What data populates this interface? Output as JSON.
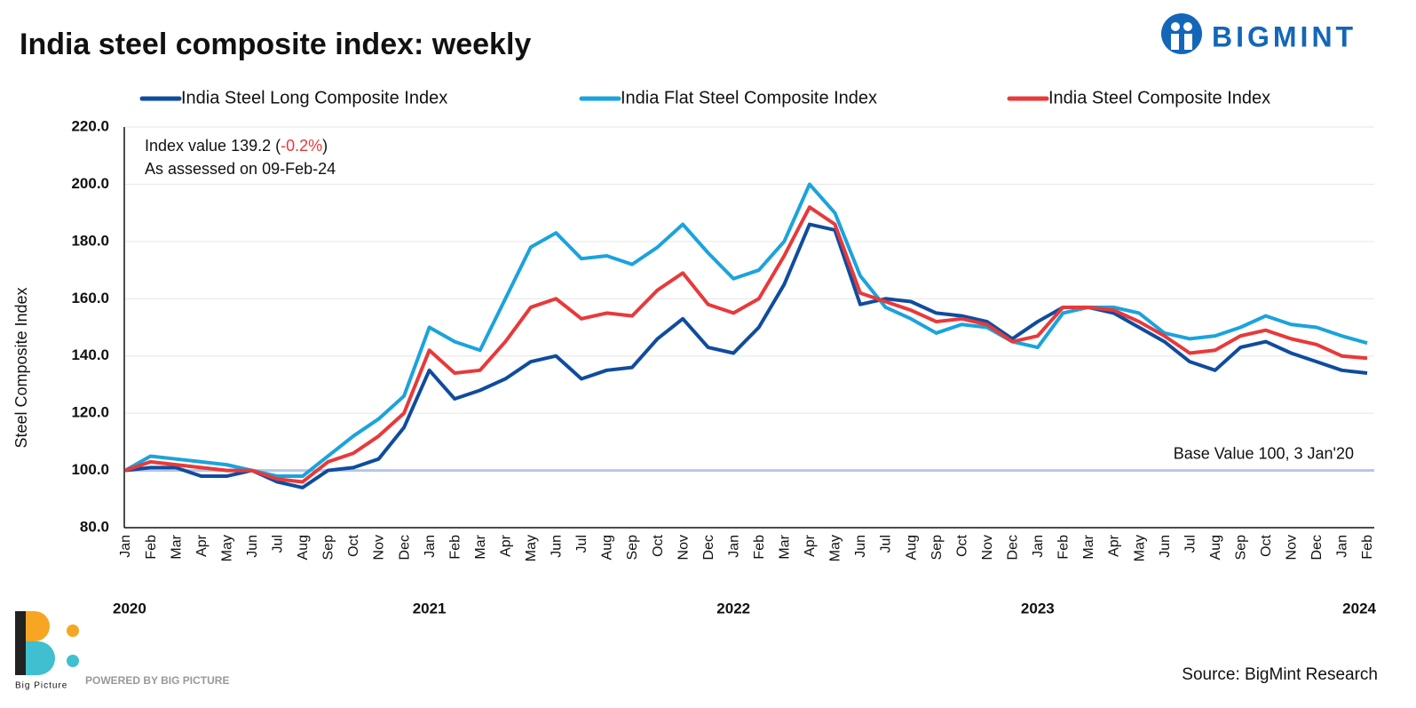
{
  "chart_data": {
    "type": "line",
    "title": "India steel composite index: weekly",
    "y_label": "Steel Composite Index",
    "brand": "BIGMINT",
    "powered_by": "POWERED BY BIG PICTURE",
    "brand2": "Big Picture",
    "source": "Source: BigMint Research",
    "annotation": {
      "prefix": "Index value 139.2 (",
      "change": "-0.2%",
      "suffix": ")",
      "line2": "As assessed on 09-Feb-24"
    },
    "reference": {
      "value": 100,
      "label": "Base Value 100, 3 Jan'20",
      "color": "#b4c7e7"
    },
    "categories": [
      "Jan",
      "Feb",
      "Mar",
      "Apr",
      "May",
      "Jun",
      "Jul",
      "Aug",
      "Sep",
      "Oct",
      "Nov",
      "Dec",
      "Jan",
      "Feb",
      "Mar",
      "Apr",
      "May",
      "Jun",
      "Jul",
      "Aug",
      "Sep",
      "Oct",
      "Nov",
      "Dec",
      "Jan",
      "Feb",
      "Mar",
      "Apr",
      "May",
      "Jun",
      "Jul",
      "Aug",
      "Sep",
      "Oct",
      "Nov",
      "Dec",
      "Jan",
      "Feb",
      "Mar",
      "Apr",
      "May",
      "Jun",
      "Jul",
      "Aug",
      "Sep",
      "Oct",
      "Nov",
      "Dec",
      "Jan",
      "Feb"
    ],
    "years": [
      "2020",
      "2021",
      "2022",
      "2023",
      "2024"
    ],
    "series": [
      {
        "name": "India Steel Long Composite Index",
        "color": "#0f4c9e",
        "values": [
          100,
          101,
          101,
          98,
          98,
          100,
          96,
          94,
          100,
          101,
          104,
          115,
          135,
          125,
          128,
          132,
          138,
          140,
          132,
          135,
          136,
          146,
          153,
          143,
          141,
          150,
          165,
          186,
          184,
          158,
          160,
          159,
          155,
          154,
          152,
          146,
          152,
          157,
          157,
          155,
          150,
          145,
          138,
          135,
          143,
          145,
          141,
          138,
          135,
          134
        ]
      },
      {
        "name": "India Flat Steel Composite Index",
        "color": "#1ba3dc",
        "values": [
          100,
          105,
          104,
          103,
          102,
          100,
          98,
          98,
          105,
          112,
          118,
          126,
          150,
          145,
          142,
          160,
          178,
          183,
          174,
          175,
          172,
          178,
          186,
          176,
          167,
          170,
          180,
          200,
          190,
          168,
          157,
          153,
          148,
          151,
          150,
          145,
          143,
          155,
          157,
          157,
          155,
          148,
          146,
          147,
          150,
          154,
          151,
          150,
          147,
          144.5
        ]
      },
      {
        "name": "India Steel Composite Index",
        "color": "#e8393a",
        "values": [
          100,
          103,
          102,
          101,
          100,
          100,
          97,
          96,
          103,
          106,
          112,
          120,
          142,
          134,
          135,
          145,
          157,
          160,
          153,
          155,
          154,
          163,
          169,
          158,
          155,
          160,
          175,
          192,
          186,
          162,
          159,
          156,
          152,
          153,
          151,
          145,
          147,
          157,
          157,
          156,
          152,
          147,
          141,
          142,
          147,
          149,
          146,
          144,
          140,
          139.2
        ]
      }
    ],
    "ylim": [
      80,
      220
    ],
    "yticks": [
      {
        "value": 80,
        "label": "80.0"
      },
      {
        "value": 100,
        "label": "100.0"
      },
      {
        "value": 120,
        "label": "120.0"
      },
      {
        "value": 140,
        "label": "140.0"
      },
      {
        "value": 160,
        "label": "160.0"
      },
      {
        "value": 180,
        "label": "180.0"
      },
      {
        "value": 200,
        "label": "200.0"
      },
      {
        "value": 220,
        "label": "220.0"
      }
    ],
    "grid": true
  }
}
